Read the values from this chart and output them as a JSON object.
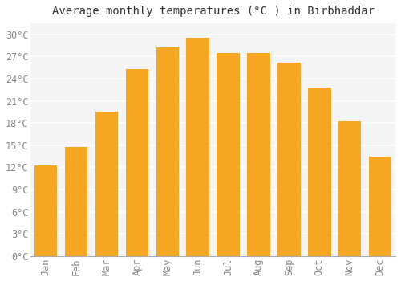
{
  "title": "Average monthly temperatures (°C ) in Birbhaddar",
  "months": [
    "Jan",
    "Feb",
    "Mar",
    "Apr",
    "May",
    "Jun",
    "Jul",
    "Aug",
    "Sep",
    "Oct",
    "Nov",
    "Dec"
  ],
  "temperatures": [
    12.3,
    14.8,
    19.5,
    25.3,
    28.3,
    29.5,
    27.5,
    27.5,
    26.2,
    22.8,
    18.2,
    13.5
  ],
  "bar_color_top": "#F5A623",
  "bar_color_bottom": "#FFD07A",
  "background_color": "#FFFFFF",
  "plot_bg_color": "#F5F5F5",
  "grid_color": "#FFFFFF",
  "ytick_labels": [
    "0°C",
    "3°C",
    "6°C",
    "9°C",
    "12°C",
    "15°C",
    "18°C",
    "21°C",
    "24°C",
    "27°C",
    "30°C"
  ],
  "ytick_values": [
    0,
    3,
    6,
    9,
    12,
    15,
    18,
    21,
    24,
    27,
    30
  ],
  "ylim": [
    0,
    31.5
  ],
  "title_fontsize": 10,
  "tick_fontsize": 8.5,
  "tick_color": "#888888"
}
